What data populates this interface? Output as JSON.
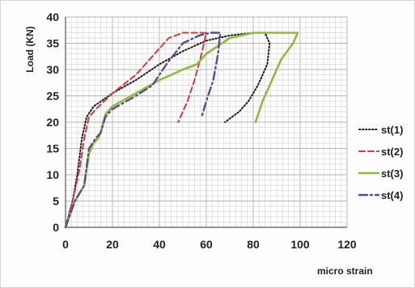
{
  "chart_data": {
    "type": "line",
    "title": "",
    "xlabel": "micro strain",
    "ylabel": "Load (KN)",
    "xlim": [
      0,
      120
    ],
    "ylim": [
      0,
      40
    ],
    "x_ticks": [
      "0",
      "20",
      "40",
      "60",
      "80",
      "100",
      "120"
    ],
    "y_ticks": [
      "0",
      "5",
      "10",
      "15",
      "20",
      "25",
      "30",
      "35",
      "40"
    ],
    "grid": true,
    "legend_position": "right",
    "series": [
      {
        "name": "st(1)",
        "color": "#1a1a1a",
        "style": "dotted",
        "x": [
          0,
          3,
          5,
          7,
          9,
          12,
          20,
          30,
          40,
          50,
          60,
          70,
          80,
          85,
          87,
          86,
          82,
          78,
          74,
          68
        ],
        "y": [
          0,
          5,
          10,
          17,
          21,
          23,
          25.5,
          28,
          31,
          33.5,
          35.5,
          36.5,
          37,
          37,
          35,
          31,
          27,
          24,
          22,
          20
        ]
      },
      {
        "name": "st(2)",
        "color": "#d43a3a",
        "style": "dashed",
        "x": [
          0,
          3,
          6,
          8,
          10,
          13,
          20,
          30,
          38,
          44,
          50,
          56,
          60,
          58,
          55,
          52,
          48
        ],
        "y": [
          0,
          5,
          11,
          17,
          21,
          22.5,
          25.5,
          29,
          33,
          36,
          37,
          37,
          37,
          33,
          28,
          24,
          20
        ]
      },
      {
        "name": "st(3)",
        "color": "#8cbc3a",
        "style": "solid",
        "x": [
          0,
          4,
          8,
          10,
          12,
          14,
          15,
          17,
          20,
          30,
          40,
          50,
          56,
          60,
          70,
          80,
          90,
          95,
          99,
          97,
          92,
          88,
          84,
          81
        ],
        "y": [
          0,
          5,
          8,
          14,
          16,
          17,
          18,
          21.5,
          23,
          25.5,
          28,
          30,
          31,
          33,
          36,
          37,
          37,
          37,
          37,
          35,
          32,
          28,
          24,
          20
        ]
      },
      {
        "name": "st(4)",
        "color": "#5c4b8e",
        "style": "dashdot",
        "x": [
          0,
          4,
          8,
          10,
          13,
          15,
          17,
          20,
          30,
          37,
          43,
          50,
          57,
          62,
          66,
          65,
          63,
          60,
          58
        ],
        "y": [
          0,
          5,
          8,
          15,
          17,
          18,
          21,
          22.5,
          25,
          27,
          31,
          35,
          36.5,
          37,
          37,
          33,
          28,
          24,
          21
        ]
      }
    ]
  }
}
